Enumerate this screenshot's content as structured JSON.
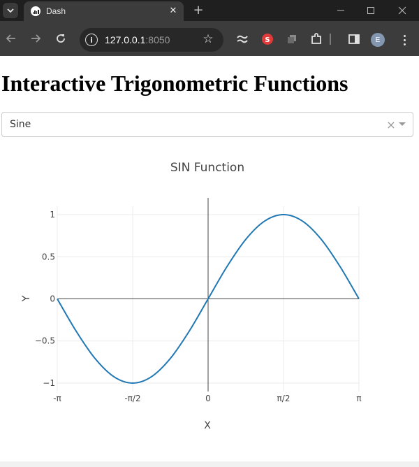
{
  "browser": {
    "tab_title": "Dash",
    "url_host": "127.0.0.1",
    "url_port": ":8050",
    "avatar_letter": "E",
    "theme_color": "#3c3c3c"
  },
  "page": {
    "title": "Interactive Trigonometric Functions"
  },
  "dropdown": {
    "selected": "Sine",
    "clear_symbol": "×"
  },
  "chart_data": {
    "type": "line",
    "title": "SIN Function",
    "xlabel": "X",
    "ylabel": "Y",
    "xlim": [
      -3.14159,
      3.14159
    ],
    "ylim": [
      -1.1,
      1.1
    ],
    "x_ticks": [
      {
        "value": -3.14159,
        "label": "-π"
      },
      {
        "value": -1.5708,
        "label": "-π/2"
      },
      {
        "value": 0,
        "label": "0"
      },
      {
        "value": 1.5708,
        "label": "π/2"
      },
      {
        "value": 3.14159,
        "label": "π"
      }
    ],
    "y_ticks": [
      {
        "value": -1,
        "label": "−1"
      },
      {
        "value": -0.5,
        "label": "−0.5"
      },
      {
        "value": 0,
        "label": "0"
      },
      {
        "value": 0.5,
        "label": "0.5"
      },
      {
        "value": 1,
        "label": "1"
      }
    ],
    "grid": true,
    "series": [
      {
        "color": "#1f77b4",
        "x": [
          -3.14159,
          -2.74889,
          -2.35619,
          -1.9635,
          -1.5708,
          -1.1781,
          -0.7854,
          -0.3927,
          0,
          0.3927,
          0.7854,
          1.1781,
          1.5708,
          1.9635,
          2.35619,
          2.74889,
          3.14159
        ],
        "y": [
          0,
          -0.3827,
          -0.7071,
          -0.9239,
          -1,
          -0.9239,
          -0.7071,
          -0.3827,
          0,
          0.3827,
          0.7071,
          0.9239,
          1,
          0.9239,
          0.7071,
          0.3827,
          0
        ]
      }
    ]
  }
}
